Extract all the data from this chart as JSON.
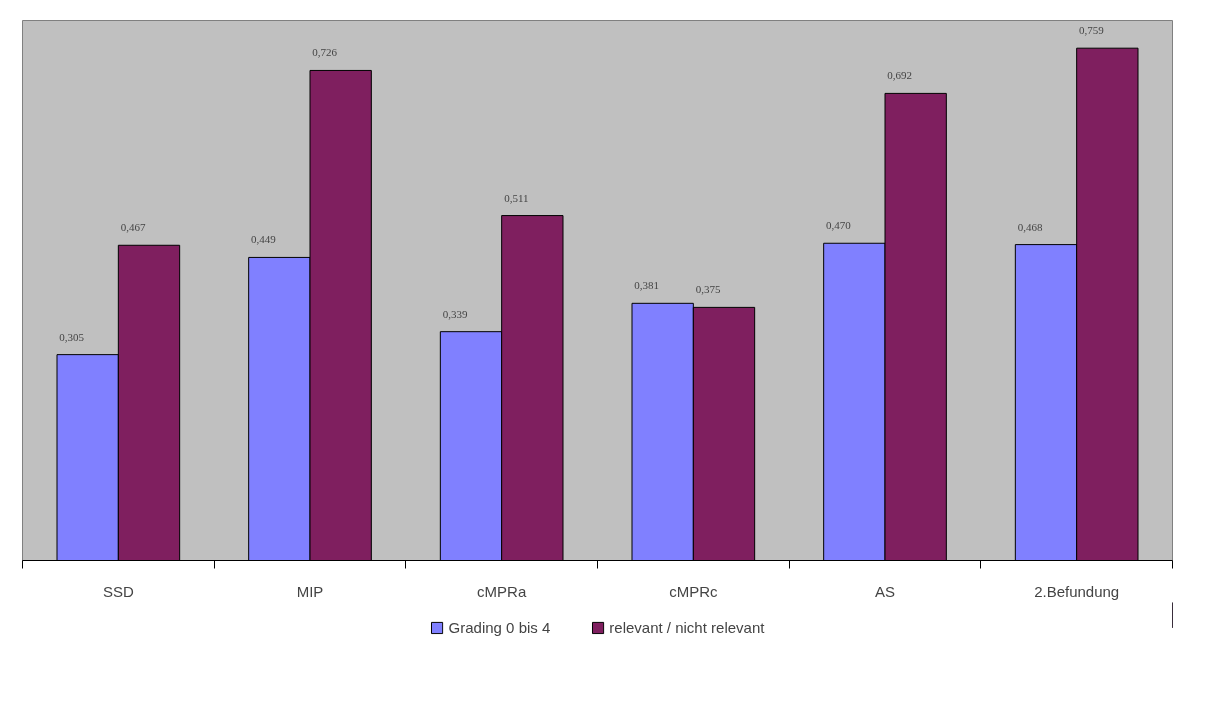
{
  "chart_data": {
    "type": "bar",
    "categories": [
      "SSD",
      "MIP",
      "cMPRa",
      "cMPRc",
      "AS",
      "2.Befundung"
    ],
    "series": [
      {
        "name": "Grading 0 bis 4",
        "color": "#8080ff",
        "values": [
          0.305,
          0.449,
          0.339,
          0.381,
          0.47,
          0.468
        ],
        "value_labels": [
          "0,305",
          "0,449",
          "0,339",
          "0,381",
          "0,470",
          "0,468"
        ]
      },
      {
        "name": "relevant / nicht relevant",
        "color": "#7f1f5f",
        "values": [
          0.467,
          0.726,
          0.511,
          0.375,
          0.692,
          0.759
        ],
        "value_labels": [
          "0,467",
          "0,726",
          "0,511",
          "0,375",
          "0,692",
          "0,759"
        ]
      }
    ],
    "ylim": [
      0,
      0.8
    ],
    "tick_labels": "x",
    "grid": false,
    "legend": "bottom"
  }
}
